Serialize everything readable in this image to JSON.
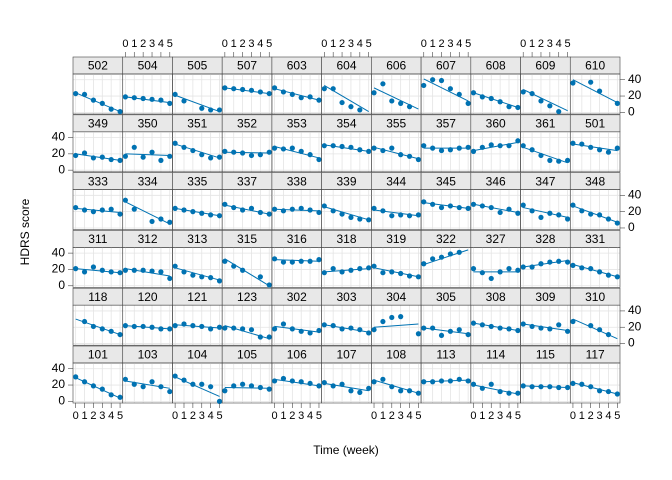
{
  "chart_data": {
    "type": "lattice",
    "xlabel": "Time (week)",
    "ylabel": "HDRS score",
    "x": [
      0,
      1,
      2,
      3,
      4,
      5
    ],
    "xlim": [
      -0.3,
      5.3
    ],
    "ylim": [
      -2,
      47
    ],
    "xticks": [
      0,
      1,
      2,
      3,
      4,
      5
    ],
    "yticks": [
      0,
      20,
      40
    ],
    "grid": true,
    "color": "#0072b2",
    "columns": 11,
    "panels": [
      {
        "name": "502",
        "values": [
          23,
          22,
          15,
          11,
          4,
          1
        ],
        "fit": [
          24,
          1
        ]
      },
      {
        "name": "504",
        "values": [
          19,
          18,
          17,
          16,
          15,
          11
        ],
        "fit": [
          19,
          12
        ]
      },
      {
        "name": "505",
        "values": [
          22,
          14,
          null,
          5,
          3,
          3
        ],
        "fit": [
          21,
          1
        ]
      },
      {
        "name": "507",
        "values": [
          30,
          29,
          28,
          27,
          25,
          23
        ],
        "fit": [
          30,
          23
        ]
      },
      {
        "name": "603",
        "values": [
          30,
          25,
          22,
          18,
          19,
          15
        ],
        "fit": [
          29,
          15
        ]
      },
      {
        "name": "604",
        "values": [
          29,
          29,
          12,
          7,
          3,
          null
        ],
        "fit": [
          33,
          1
        ]
      },
      {
        "name": "606",
        "values": [
          24,
          35,
          14,
          11,
          7,
          null
        ],
        "fit": [
          30,
          4
        ]
      },
      {
        "name": "607",
        "values": [
          33,
          40,
          39,
          29,
          22,
          11
        ],
        "fit": [
          41,
          14
        ]
      },
      {
        "name": "608",
        "values": [
          24,
          19,
          17,
          13,
          7,
          6
        ],
        "fit": [
          24,
          6
        ]
      },
      {
        "name": "609",
        "values": [
          25,
          23,
          14,
          8,
          1,
          null
        ],
        "fit": [
          28,
          2
        ]
      },
      {
        "name": "610",
        "values": [
          36,
          null,
          37,
          26,
          null,
          11
        ],
        "fit": [
          40,
          12
        ]
      },
      {
        "name": "349",
        "values": [
          18,
          21,
          15,
          16,
          13,
          12
        ],
        "fit": [
          20,
          12
        ]
      },
      {
        "name": "350",
        "values": [
          17,
          28,
          16,
          22,
          12,
          17
        ],
        "fit": [
          20,
          18
        ]
      },
      {
        "name": "351",
        "values": [
          33,
          28,
          24,
          19,
          15,
          16
        ],
        "fit": [
          32,
          15
        ]
      },
      {
        "name": "352",
        "values": [
          23,
          22,
          21,
          18,
          19,
          22
        ],
        "fit": [
          22,
          21
        ]
      },
      {
        "name": "353",
        "values": [
          27,
          26,
          27,
          23,
          19,
          13
        ],
        "fit": [
          29,
          15
        ]
      },
      {
        "name": "354",
        "values": [
          30,
          30,
          29,
          28,
          25,
          23
        ],
        "fit": [
          31,
          23
        ]
      },
      {
        "name": "355",
        "values": [
          27,
          24,
          27,
          19,
          17,
          13
        ],
        "fit": [
          28,
          14
        ]
      },
      {
        "name": "357",
        "values": [
          30,
          27,
          24,
          25,
          27,
          28
        ],
        "fit": [
          27,
          27
        ]
      },
      {
        "name": "360",
        "values": [
          23,
          28,
          31,
          30,
          30,
          36
        ],
        "fit": [
          24,
          34
        ]
      },
      {
        "name": "361",
        "values": [
          30,
          25,
          18,
          12,
          11,
          12
        ],
        "fit": [
          28,
          9
        ]
      },
      {
        "name": "501",
        "values": [
          33,
          32,
          28,
          25,
          22,
          27
        ],
        "fit": [
          32,
          24
        ]
      },
      {
        "name": "333",
        "values": [
          25,
          22,
          20,
          22,
          23,
          17
        ],
        "fit": [
          24,
          19
        ]
      },
      {
        "name": "334",
        "values": [
          34,
          23,
          null,
          8,
          11,
          7
        ],
        "fit": [
          32,
          5
        ]
      },
      {
        "name": "335",
        "values": [
          24,
          22,
          20,
          18,
          16,
          15
        ],
        "fit": [
          24,
          15
        ]
      },
      {
        "name": "337",
        "values": [
          29,
          25,
          22,
          24,
          19,
          17
        ],
        "fit": [
          28,
          17
        ]
      },
      {
        "name": "338",
        "values": [
          23,
          21,
          23,
          24,
          22,
          19
        ],
        "fit": [
          23,
          21
        ]
      },
      {
        "name": "339",
        "values": [
          27,
          21,
          17,
          13,
          11,
          10
        ],
        "fit": [
          26,
          10
        ]
      },
      {
        "name": "344",
        "values": [
          24,
          21,
          15,
          16,
          15,
          16
        ],
        "fit": [
          22,
          15
        ]
      },
      {
        "name": "345",
        "values": [
          32,
          29,
          25,
          27,
          25,
          24
        ],
        "fit": [
          31,
          24
        ]
      },
      {
        "name": "346",
        "values": [
          29,
          27,
          25,
          19,
          23,
          18
        ],
        "fit": [
          29,
          19
        ]
      },
      {
        "name": "347",
        "values": [
          28,
          21,
          13,
          18,
          16,
          11
        ],
        "fit": [
          25,
          13
        ]
      },
      {
        "name": "348",
        "values": [
          28,
          21,
          17,
          16,
          11,
          6
        ],
        "fit": [
          27,
          7
        ]
      },
      {
        "name": "311",
        "values": [
          21,
          17,
          23,
          19,
          17,
          16
        ],
        "fit": [
          21,
          16
        ]
      },
      {
        "name": "312",
        "values": [
          19,
          19,
          19,
          18,
          17,
          9
        ],
        "fit": [
          21,
          12
        ]
      },
      {
        "name": "313",
        "values": [
          24,
          17,
          13,
          11,
          10,
          6
        ],
        "fit": [
          22,
          7
        ]
      },
      {
        "name": "315",
        "values": [
          30,
          24,
          19,
          null,
          11,
          1
        ],
        "fit": [
          33,
          0
        ]
      },
      {
        "name": "316",
        "values": [
          33,
          29,
          29,
          30,
          30,
          32
        ],
        "fit": [
          32,
          30
        ]
      },
      {
        "name": "318",
        "values": [
          16,
          21,
          17,
          19,
          21,
          22
        ],
        "fit": [
          17,
          21
        ]
      },
      {
        "name": "319",
        "values": [
          24,
          16,
          17,
          15,
          12,
          11
        ],
        "fit": [
          22,
          11
        ]
      },
      {
        "name": "322",
        "values": [
          27,
          33,
          35,
          39,
          41,
          null
        ],
        "fit": [
          26,
          44
        ]
      },
      {
        "name": "327",
        "values": [
          21,
          16,
          9,
          17,
          21,
          19
        ],
        "fit": [
          17,
          17
        ]
      },
      {
        "name": "328",
        "values": [
          23,
          23,
          27,
          29,
          30,
          29
        ],
        "fit": [
          23,
          31
        ]
      },
      {
        "name": "331",
        "values": [
          25,
          22,
          21,
          17,
          13,
          11
        ],
        "fit": [
          26,
          11
        ]
      },
      {
        "name": "118",
        "values": [
          null,
          27,
          21,
          18,
          15,
          11
        ],
        "fit": [
          30,
          11
        ]
      },
      {
        "name": "120",
        "values": [
          22,
          21,
          21,
          20,
          18,
          18
        ],
        "fit": [
          22,
          18
        ]
      },
      {
        "name": "121",
        "values": [
          22,
          24,
          22,
          21,
          18,
          20
        ],
        "fit": [
          23,
          19
        ]
      },
      {
        "name": "123",
        "values": [
          19,
          19,
          18,
          17,
          8,
          8
        ],
        "fit": [
          22,
          6
        ]
      },
      {
        "name": "302",
        "values": [
          18,
          24,
          18,
          15,
          13,
          16
        ],
        "fit": [
          21,
          14
        ]
      },
      {
        "name": "303",
        "values": [
          23,
          22,
          18,
          19,
          17,
          13
        ],
        "fit": [
          23,
          14
        ]
      },
      {
        "name": "304",
        "values": [
          17,
          27,
          32,
          33,
          null,
          12
        ],
        "fit": [
          20,
          24
        ]
      },
      {
        "name": "305",
        "values": [
          19,
          19,
          10,
          15,
          17,
          11
        ],
        "fit": [
          19,
          12
        ]
      },
      {
        "name": "308",
        "values": [
          25,
          23,
          21,
          19,
          18,
          16
        ],
        "fit": [
          25,
          16
        ]
      },
      {
        "name": "309",
        "values": [
          24,
          21,
          19,
          18,
          23,
          15
        ],
        "fit": [
          24,
          16
        ]
      },
      {
        "name": "310",
        "values": [
          27,
          null,
          22,
          17,
          11,
          null
        ],
        "fit": [
          30,
          6
        ]
      },
      {
        "name": "101",
        "values": [
          30,
          24,
          19,
          15,
          8,
          5
        ],
        "fit": [
          29,
          4
        ]
      },
      {
        "name": "103",
        "values": [
          27,
          21,
          18,
          24,
          18,
          12
        ],
        "fit": [
          25,
          16
        ]
      },
      {
        "name": "104",
        "values": [
          31,
          26,
          21,
          21,
          18,
          0
        ],
        "fit": [
          30,
          6
        ]
      },
      {
        "name": "105",
        "values": [
          13,
          19,
          21,
          19,
          17,
          15
        ],
        "fit": [
          17,
          16
        ]
      },
      {
        "name": "106",
        "values": [
          25,
          28,
          25,
          24,
          22,
          19
        ],
        "fit": [
          27,
          19
        ]
      },
      {
        "name": "107",
        "values": [
          23,
          19,
          21,
          13,
          11,
          16
        ],
        "fit": [
          22,
          13
        ]
      },
      {
        "name": "108",
        "values": [
          24,
          27,
          18,
          13,
          13,
          10
        ],
        "fit": [
          26,
          10
        ]
      },
      {
        "name": "113",
        "values": [
          24,
          24,
          25,
          25,
          27,
          25
        ],
        "fit": [
          24,
          26
        ]
      },
      {
        "name": "114",
        "values": [
          21,
          16,
          21,
          12,
          10,
          10
        ],
        "fit": [
          20,
          9
        ]
      },
      {
        "name": "115",
        "values": [
          19,
          18,
          18,
          18,
          17,
          17
        ],
        "fit": [
          19,
          17
        ]
      },
      {
        "name": "117",
        "values": [
          22,
          21,
          18,
          13,
          12,
          9
        ],
        "fit": [
          23,
          9
        ]
      }
    ]
  }
}
